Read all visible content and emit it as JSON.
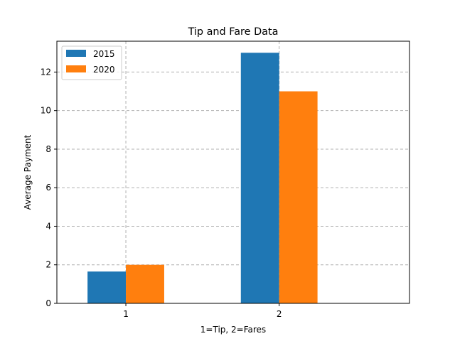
{
  "chart_data": {
    "type": "bar",
    "title": "Tip and Fare Data",
    "xlabel": "1=Tip, 2=Fares",
    "ylabel": "Average Payment",
    "categories": [
      "1",
      "2"
    ],
    "x": [
      1,
      2
    ],
    "series": [
      {
        "name": "2015",
        "values": [
          1.65,
          13.0
        ],
        "color": "#1f77b4"
      },
      {
        "name": "2020",
        "values": [
          2.0,
          11.0
        ],
        "color": "#ff7f0e"
      }
    ],
    "xlim": [
      0.55,
      2.85
    ],
    "ylim": [
      0,
      13.6
    ],
    "yticks": [
      0,
      2,
      4,
      6,
      8,
      10,
      12
    ],
    "grid": true,
    "legend_position": "top-left"
  }
}
